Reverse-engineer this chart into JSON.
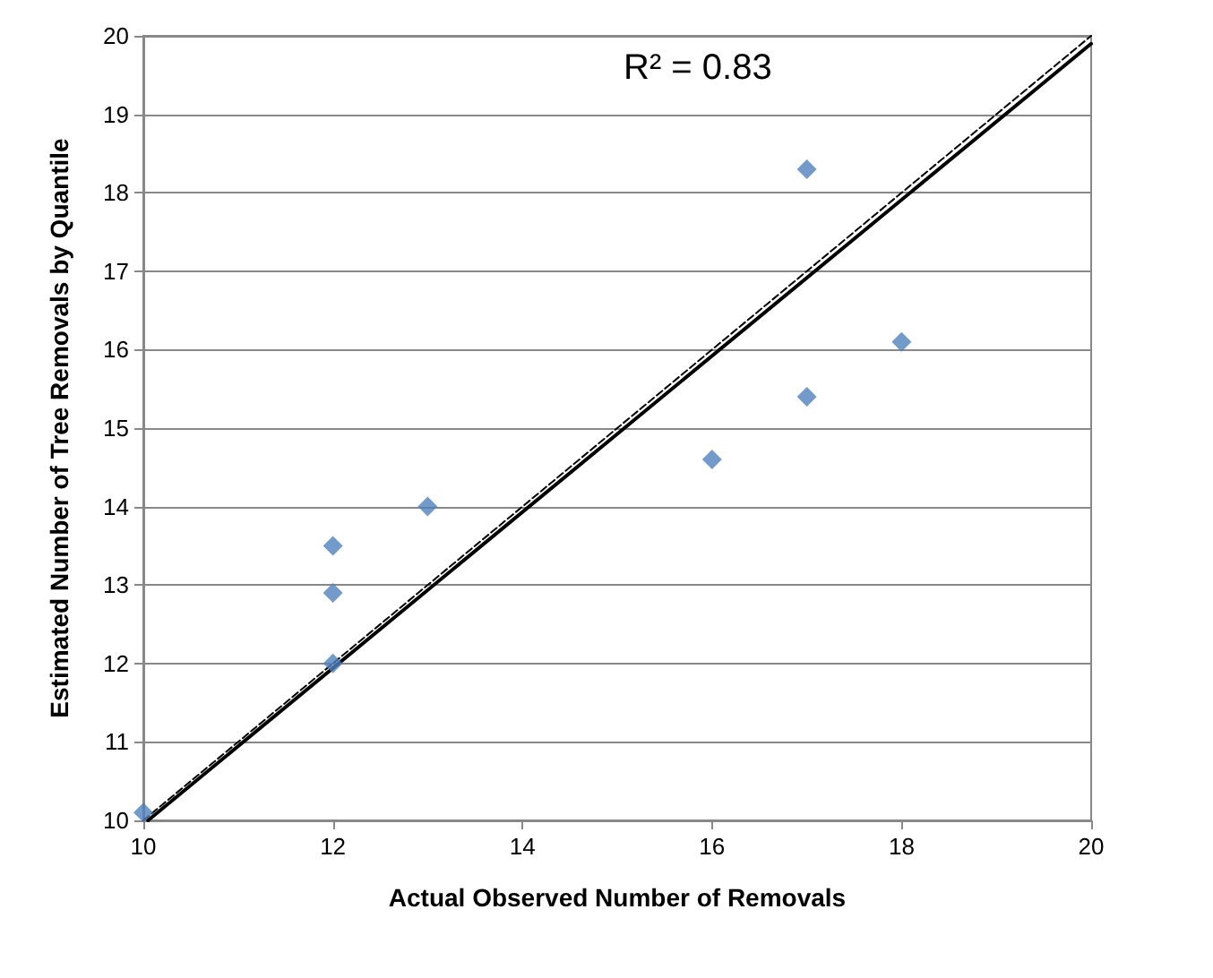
{
  "chart_data": {
    "type": "scatter",
    "xlabel": "Actual Observed Number of Removals",
    "ylabel": "Estimated Number of Tree Removals by Quantile",
    "annotations": [
      "R² = 0.83"
    ],
    "xlim": [
      10,
      20
    ],
    "xticks": [
      10,
      12,
      14,
      16,
      18,
      20
    ],
    "ylim": [
      10,
      20
    ],
    "yticks": [
      10,
      11,
      12,
      13,
      14,
      15,
      16,
      17,
      18,
      19,
      20
    ],
    "grid": "y",
    "series": [
      {
        "color": "#4f81bd",
        "marker": "diamond",
        "x": [
          10,
          12,
          12,
          12,
          13,
          16,
          17,
          17,
          18
        ],
        "values": [
          10.1,
          12.0,
          12.9,
          13.5,
          14.0,
          14.6,
          15.4,
          18.3,
          16.1
        ]
      },
      {
        "type": "line",
        "marker": "none",
        "color": "#000000",
        "line_style": "solid",
        "x": [
          10.05,
          20
        ],
        "values": [
          10,
          19.9
        ]
      },
      {
        "type": "line",
        "marker": "none",
        "color": "#000000",
        "line_style": "dashed",
        "x": [
          10,
          20
        ],
        "values": [
          10,
          20
        ]
      }
    ]
  }
}
